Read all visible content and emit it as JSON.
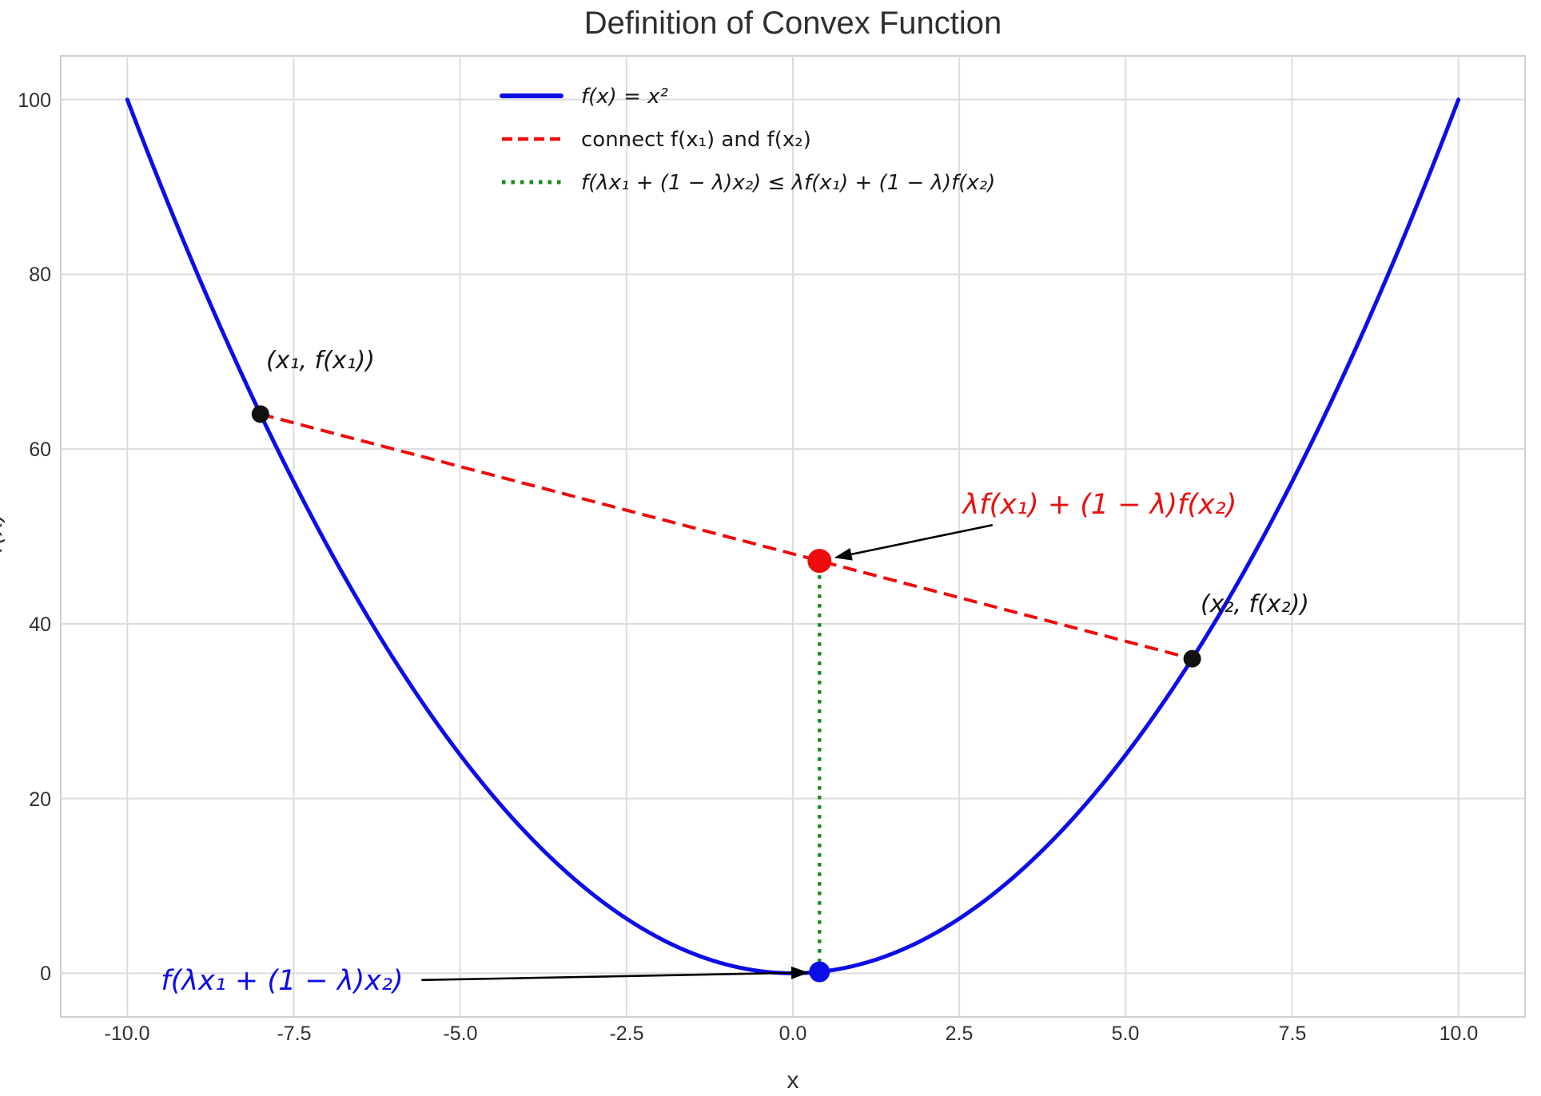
{
  "chart_data": {
    "type": "line",
    "title": "Definition of Convex Function",
    "xlabel": "x",
    "ylabel": "f(x)",
    "xlim": [
      -11,
      11
    ],
    "ylim": [
      -5,
      105
    ],
    "grid": true,
    "background": "#ffffff",
    "grid_color": "#dcdcdc",
    "spine_color": "#cfcfcf",
    "x_ticks": [
      -10,
      -7.5,
      -5,
      -2.5,
      0,
      2.5,
      5,
      7.5,
      10
    ],
    "x_tick_labels": [
      "-10.0",
      "-7.5",
      "-5.0",
      "-2.5",
      "0.0",
      "2.5",
      "5.0",
      "7.5",
      "10.0"
    ],
    "y_ticks": [
      0,
      20,
      40,
      60,
      80,
      100
    ],
    "y_tick_labels": [
      "0",
      "20",
      "40",
      "60",
      "80",
      "100"
    ],
    "curve": {
      "name": "f(x) = x²",
      "expr": "x^2",
      "x_range": [
        -10,
        10
      ],
      "color": "#0d0de8",
      "width": 5
    },
    "chord": {
      "from": {
        "x": -8,
        "y": 64
      },
      "to": {
        "x": 6,
        "y": 36
      },
      "color": "#ee0b0b",
      "width": 4,
      "dash": "17 9"
    },
    "inequality_segment": {
      "x": 0.4,
      "y_from": 0.16,
      "y_to": 47.2,
      "color": "#1a8c1a",
      "width": 4.5,
      "dash": "4.5 7.5"
    },
    "points": [
      {
        "name": "x1-point",
        "x": -8,
        "y": 64,
        "color": "#111111",
        "r": 11
      },
      {
        "name": "x2-point",
        "x": 6,
        "y": 36,
        "color": "#111111",
        "r": 11
      },
      {
        "name": "chord-interp-point",
        "x": 0.4,
        "y": 47.2,
        "color": "#ee0b0b",
        "r": 15
      },
      {
        "name": "curve-interp-point",
        "x": 0.4,
        "y": 0.16,
        "color": "#0d0de8",
        "r": 13
      }
    ],
    "legend": [
      {
        "label": "f(x) = x²",
        "color": "#0d0de8",
        "style": "solid"
      },
      {
        "label": "connect f(x₁) and f(x₂)",
        "color": "#ee0b0b",
        "style": "dashed"
      },
      {
        "label": "f(λx₁ + (1 − λ)x₂) ≤ λf(x₁) + (1 − λ)f(x₂)",
        "color": "#1a8c1a",
        "style": "dotted"
      }
    ],
    "annotations": [
      {
        "text": "(x₁, f(x₁))",
        "color": "#151515",
        "x": -7.1,
        "y": 70.5,
        "arrow": null
      },
      {
        "text": "(x₂, f(x₂))",
        "color": "#151515",
        "x": 6.95,
        "y": 42.5,
        "arrow": null
      },
      {
        "text": "λf(x₁) + (1 − λ)f(x₂)",
        "color": "#e81010",
        "x": 4.6,
        "y": 54.0,
        "arrow": {
          "from": [
            3.0,
            51.3
          ],
          "to": [
            0.62,
            47.55
          ]
        }
      },
      {
        "text": "f(λx₁ + (1 − λ)x₂)",
        "color": "#0d0de8",
        "x": -7.67,
        "y": -0.9,
        "arrow": {
          "from": [
            -5.58,
            -0.78
          ],
          "to": [
            0.24,
            0.08
          ]
        }
      }
    ],
    "arrow_color": "#000000"
  }
}
